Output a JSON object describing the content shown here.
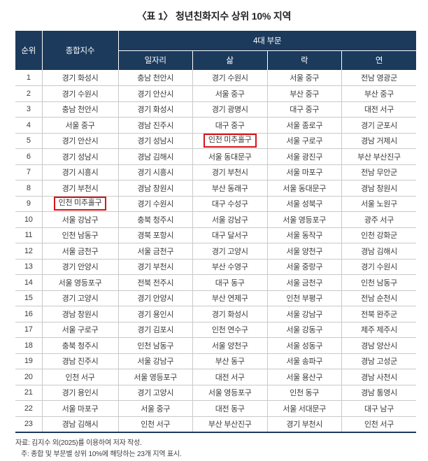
{
  "title": "〈표 1〉 청년친화지수 상위 10% 지역",
  "colors": {
    "header_bg": "#1b3a5c",
    "grid_line": "#c9c9c9",
    "highlight_border": "#d8141a",
    "body_text": "#3a3a3a"
  },
  "table": {
    "headers": {
      "rank": "순위",
      "composite": "종합지수",
      "group": "4대 부문",
      "sub": [
        "일자리",
        "삶",
        "락",
        "연"
      ]
    },
    "rows": [
      [
        "1",
        "경기 화성시",
        "충남 천안시",
        "경기 수원시",
        "서울 중구",
        "전남 영광군"
      ],
      [
        "2",
        "경기 수원시",
        "경기 안산시",
        "서울 중구",
        "부산 중구",
        "부산 중구"
      ],
      [
        "3",
        "충남 천안시",
        "경기 화성시",
        "경기 광명시",
        "대구 중구",
        "대전 서구"
      ],
      [
        "4",
        "서울 중구",
        "경남 진주시",
        "대구 중구",
        "서울 종로구",
        "경기 군포시"
      ],
      [
        "5",
        "경기 안산시",
        "경기 성남시",
        "인천 미추홀구",
        "서울 구로구",
        "경남 거제시"
      ],
      [
        "6",
        "경기 성남시",
        "경남 김해시",
        "서울 동대문구",
        "서울 광진구",
        "부산 부산진구"
      ],
      [
        "7",
        "경기 시흥시",
        "경기 시흥시",
        "경기 부천시",
        "서울 마포구",
        "전남 무안군"
      ],
      [
        "8",
        "경기 부천시",
        "경남 창원시",
        "부산 동래구",
        "서울 동대문구",
        "경남 창원시"
      ],
      [
        "9",
        "인천 미추홀구",
        "경기 수원시",
        "대구 수성구",
        "서울 성북구",
        "서울 노원구"
      ],
      [
        "10",
        "서울 강남구",
        "충북 청주시",
        "서울 강남구",
        "서울 영등포구",
        "광주 서구"
      ],
      [
        "11",
        "인천 남동구",
        "경북 포항시",
        "대구 달서구",
        "서울 동작구",
        "인천 강화군"
      ],
      [
        "12",
        "서울 금천구",
        "서울 금천구",
        "경기 고양시",
        "서울 양천구",
        "경남 김해시"
      ],
      [
        "13",
        "경기 안양시",
        "경기 부천시",
        "부산 수영구",
        "서울 중랑구",
        "경기 수원시"
      ],
      [
        "14",
        "서울 영등포구",
        "전북 전주시",
        "대구 동구",
        "서울 금천구",
        "인천 남동구"
      ],
      [
        "15",
        "경기 고양시",
        "경기 안양시",
        "부산 연제구",
        "인천 부평구",
        "전남 순천시"
      ],
      [
        "16",
        "경남 창원시",
        "경기 용인시",
        "경기 화성시",
        "서울 강남구",
        "전북 완주군"
      ],
      [
        "17",
        "서울 구로구",
        "경기 김포시",
        "인천 연수구",
        "서울 강동구",
        "제주 제주시"
      ],
      [
        "18",
        "충북 청주시",
        "인천 남동구",
        "서울 양천구",
        "서울 성동구",
        "경남 양산시"
      ],
      [
        "19",
        "경남 진주시",
        "서울 강남구",
        "부산 동구",
        "서울 송파구",
        "경남 고성군"
      ],
      [
        "20",
        "인천 서구",
        "서울 영등포구",
        "대전 서구",
        "서울 용산구",
        "경남 사천시"
      ],
      [
        "21",
        "경기 용인시",
        "경기 고양시",
        "서울 영등포구",
        "인천 동구",
        "경남 통영시"
      ],
      [
        "22",
        "서울 마포구",
        "서울 중구",
        "대전 동구",
        "서울 서대문구",
        "대구 남구"
      ],
      [
        "23",
        "경남 김해시",
        "인천 서구",
        "부산 부산진구",
        "경기 부천시",
        "인천 서구"
      ]
    ],
    "highlights": [
      {
        "row_index": 4,
        "col_index": 3
      },
      {
        "row_index": 8,
        "col_index": 1
      }
    ]
  },
  "notes": [
    "자료: 김지수 외(2025)를 이용하여 저자 작성.",
    "주: 종합 및 부문별 상위 10%에 해당하는 23개 지역 표시."
  ]
}
